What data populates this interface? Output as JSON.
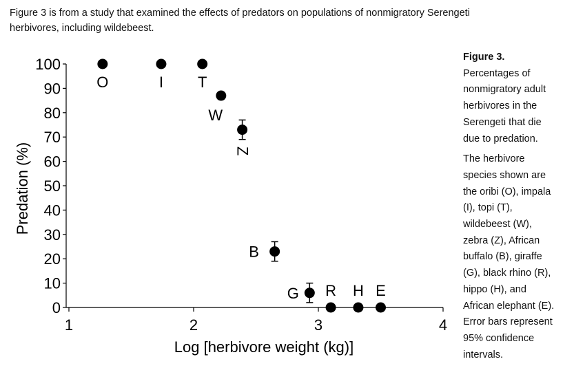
{
  "intro_text": [
    "Figure 3 is from a study that examined the effects of predators on populations of nonmigratory Serengeti",
    "herbivores, including wildebeest."
  ],
  "caption": {
    "title": "Figure 3.",
    "para1": [
      "Percentages of",
      "nonmigratory adult",
      "herbivores in the",
      "Serengeti that die",
      "due to predation."
    ],
    "para2": [
      "The herbivore",
      "species shown are",
      "the oribi (O), impala",
      "(I), topi (T),",
      "wildebeest (W),",
      "zebra (Z), African",
      "buffalo (B), giraffe",
      "(G), black rhino (R),",
      "hippo (H), and",
      "African elephant (E).",
      "Error bars represent",
      "95% confidence",
      "intervals."
    ]
  },
  "chart_data": {
    "type": "scatter",
    "title": "",
    "xlabel": "Log [herbivore weight (kg)]",
    "ylabel": "Predation (%)",
    "xlim": [
      1,
      4
    ],
    "ylim": [
      0,
      100
    ],
    "xticks": [
      1,
      2,
      3,
      4
    ],
    "yticks": [
      0,
      10,
      20,
      30,
      40,
      50,
      60,
      70,
      80,
      90,
      100
    ],
    "points": [
      {
        "label": "O",
        "x": 1.27,
        "y": 100
      },
      {
        "label": "I",
        "x": 1.74,
        "y": 100
      },
      {
        "label": "T",
        "x": 2.07,
        "y": 100
      },
      {
        "label": "W",
        "x": 2.22,
        "y": 87
      },
      {
        "label": "Z",
        "x": 2.39,
        "y": 73,
        "err_low": 69,
        "err_high": 77
      },
      {
        "label": "B",
        "x": 2.65,
        "y": 23,
        "err_low": 19,
        "err_high": 27
      },
      {
        "label": "G",
        "x": 2.93,
        "y": 6,
        "err_low": 2,
        "err_high": 10
      },
      {
        "label": "R",
        "x": 3.1,
        "y": 0
      },
      {
        "label": "H",
        "x": 3.32,
        "y": 0
      },
      {
        "label": "E",
        "x": 3.5,
        "y": 0
      }
    ]
  }
}
